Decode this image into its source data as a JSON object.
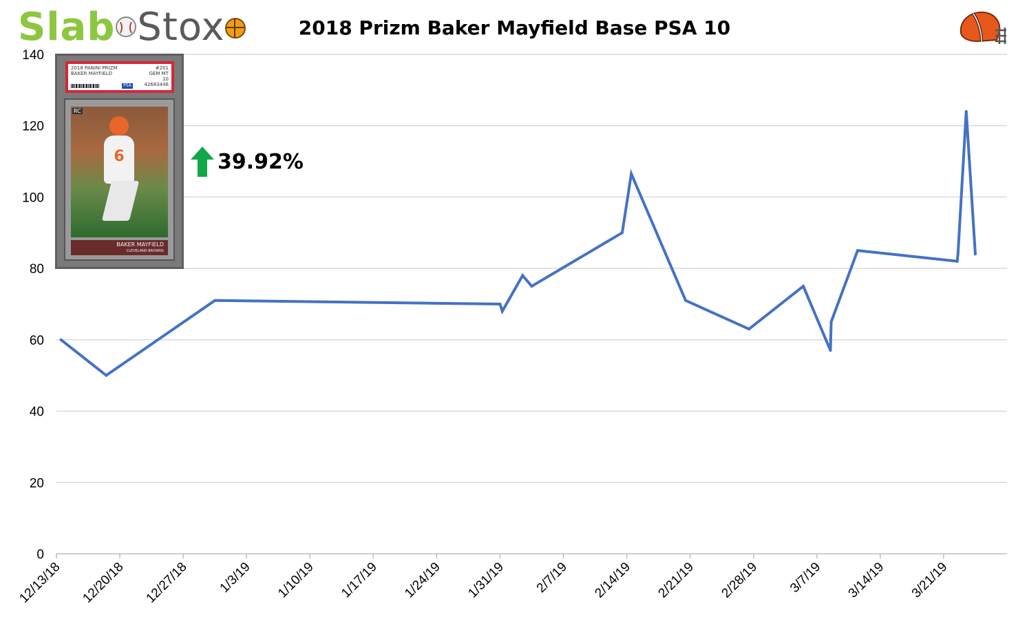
{
  "brand": {
    "slab": "Slab",
    "stox": "Stox"
  },
  "colors": {
    "line": "#4472c4",
    "grid": "#d9d9d9",
    "brand_green": "#8dc63f",
    "up_arrow": "#12a84a"
  },
  "card": {
    "label_line1": "2018 PANINI PRIZM",
    "label_line2": "BAKER MAYFIELD",
    "grade_line1": "#201",
    "grade_line2": "GEM MT",
    "grade_line3": "10",
    "cert": "42683446",
    "player_name": "BAKER MAYFIELD",
    "team": "CLEVELAND BROWNS",
    "brand": "PRIZM",
    "rookie": "RC",
    "jersey_number": "6"
  },
  "change": {
    "direction": "up",
    "value": "39.92%"
  },
  "icons": {
    "team_logo": "browns-helmet-icon",
    "arrow": "up-arrow-icon"
  },
  "chart_data": {
    "type": "line",
    "title": "2018 Prizm Baker Mayfield Base PSA 10",
    "xlabel": "",
    "ylabel": "",
    "ylim": [
      0,
      140
    ],
    "yticks": [
      0,
      20,
      40,
      60,
      80,
      100,
      120,
      140
    ],
    "xlim": [
      "2018-12-13",
      "2019-03-28"
    ],
    "xticks": [
      "12/13/18",
      "12/20/18",
      "12/27/18",
      "1/3/19",
      "1/10/19",
      "1/17/19",
      "1/24/19",
      "1/31/19",
      "2/7/19",
      "2/14/19",
      "2/21/19",
      "2/28/19",
      "3/7/19",
      "3/14/19",
      "3/21/19"
    ],
    "grid": "horizontal",
    "legend": "none",
    "series": [
      {
        "points": [
          [
            "2018-12-13T12:00",
            60
          ],
          [
            "2018-12-18T12:00",
            50
          ],
          [
            "2018-12-30T12:00",
            71
          ],
          [
            "2019-01-31T00:00",
            70
          ],
          [
            "2019-01-31T06:00",
            68
          ],
          [
            "2019-02-02T12:00",
            78
          ],
          [
            "2019-02-03T12:00",
            75
          ],
          [
            "2019-02-13T12:00",
            90
          ],
          [
            "2019-02-14T12:00",
            106.5
          ],
          [
            "2019-02-20T12:00",
            71
          ],
          [
            "2019-02-27T12:00",
            63
          ],
          [
            "2019-03-05T12:00",
            75
          ],
          [
            "2019-03-08T12:00",
            57
          ],
          [
            "2019-03-08T14:00",
            65
          ],
          [
            "2019-03-11T12:00",
            85
          ],
          [
            "2019-03-22T12:00",
            82
          ],
          [
            "2019-03-22T14:00",
            84
          ],
          [
            "2019-03-23T12:00",
            124
          ],
          [
            "2019-03-24T12:00",
            84
          ]
        ]
      }
    ]
  }
}
